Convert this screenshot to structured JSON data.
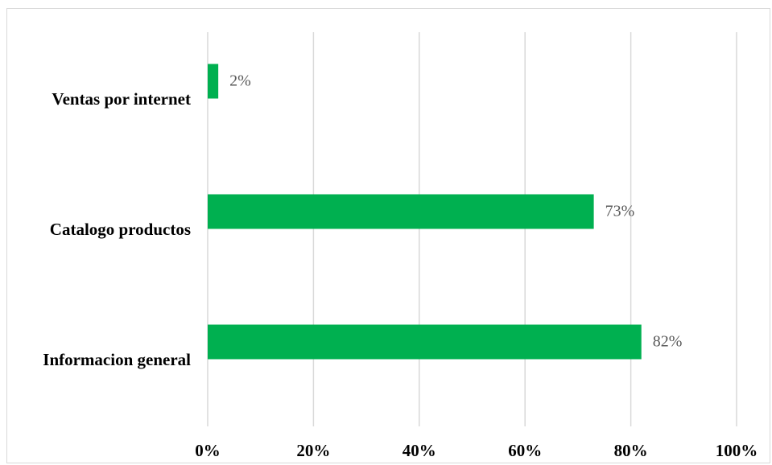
{
  "chart_data": {
    "type": "bar",
    "orientation": "horizontal",
    "title": "",
    "categories": [
      "Ventas por internet",
      "Catalogo productos",
      "Informacion general"
    ],
    "values": [
      2,
      73,
      82
    ],
    "value_labels": [
      "2%",
      "73%",
      "82%"
    ],
    "x_ticks": [
      "0%",
      "20%",
      "40%",
      "60%",
      "80%",
      "100%"
    ],
    "x_tick_values": [
      0,
      20,
      40,
      60,
      80,
      100
    ],
    "xlim": [
      0,
      100
    ],
    "xlabel": "",
    "ylabel": "",
    "grid": "vertical",
    "legend": "none",
    "colors": {
      "bar": "#00b050",
      "grid": "#d9d9d9",
      "data_label": "#595959"
    }
  }
}
